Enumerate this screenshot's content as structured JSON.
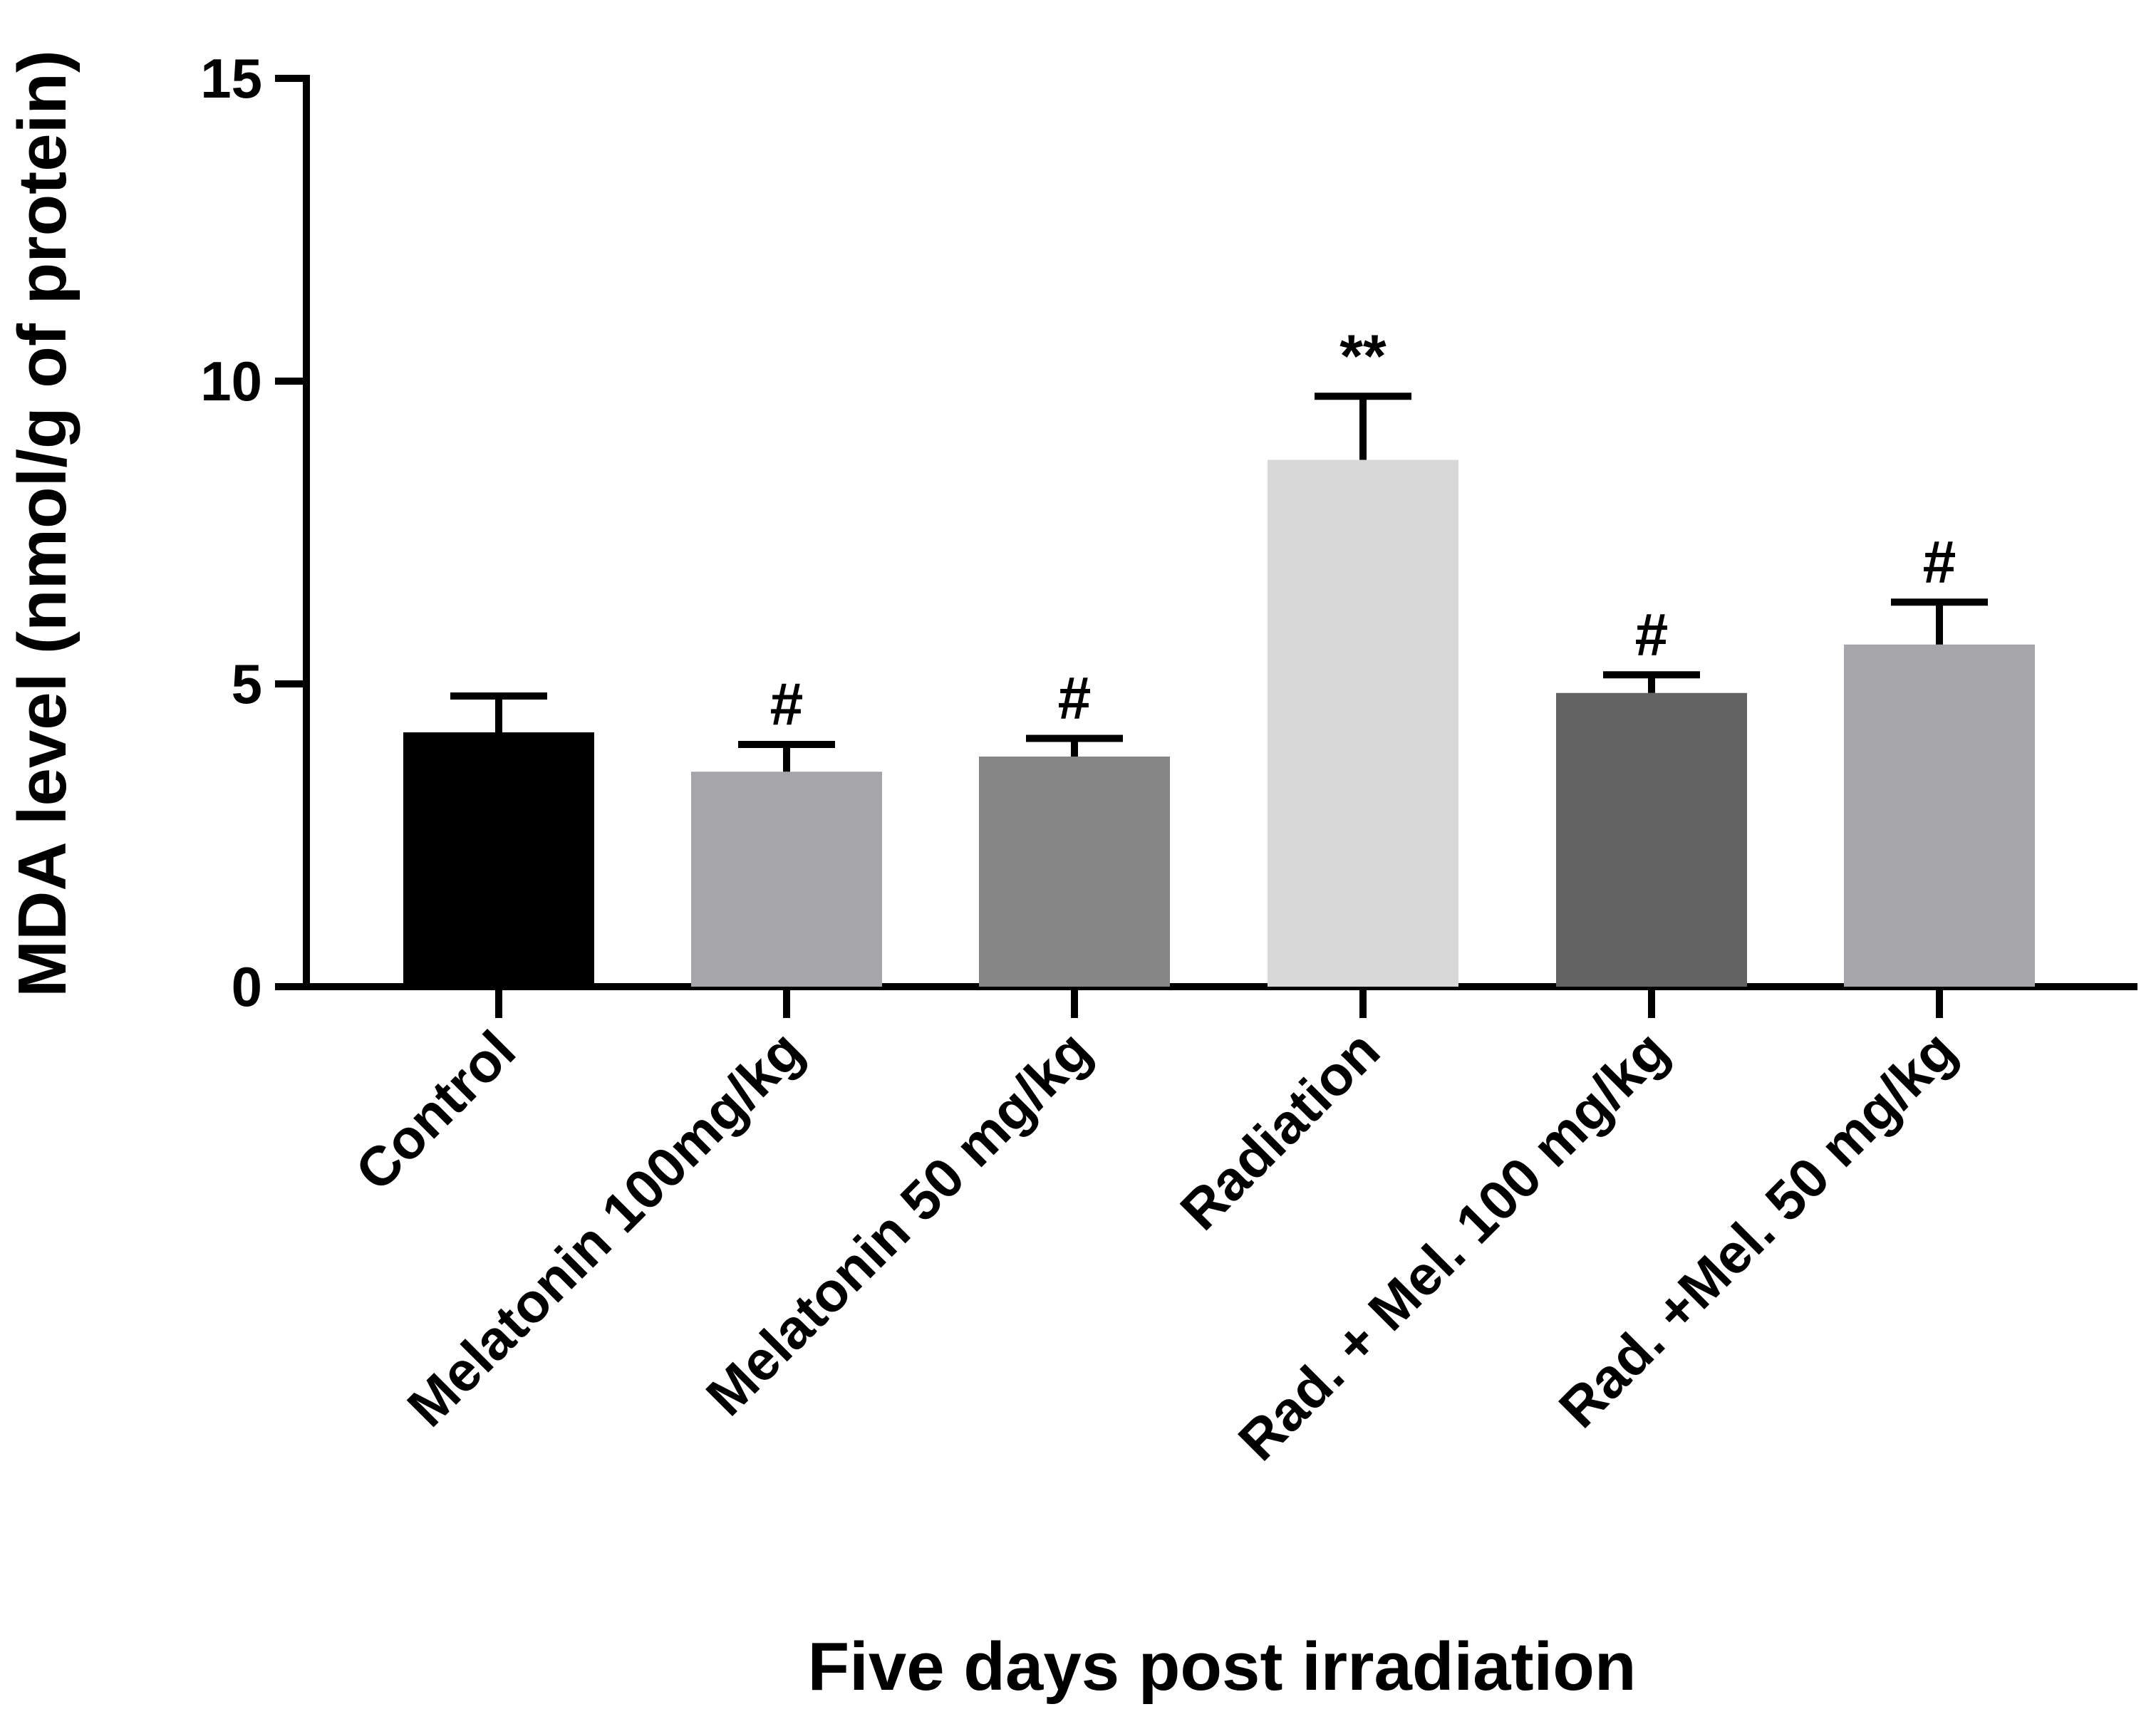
{
  "chart_data": {
    "type": "bar",
    "title": "",
    "xlabel": "Five days post irradiation",
    "ylabel": "MDA level (nmol/g of protein)",
    "ylim": [
      0,
      15
    ],
    "yticks": [
      0,
      5,
      10,
      15
    ],
    "ytick_labels": [
      "0",
      "5",
      "10",
      "15"
    ],
    "grid": false,
    "categories": [
      "Control",
      "Melatonin 100mg/kg",
      "Melatonin 50 mg/kg",
      "Radiation",
      "Rad. + Mel. 100 mg/kg",
      "Rad. +Mel. 50 mg/kg"
    ],
    "values": [
      4.2,
      3.55,
      3.8,
      8.7,
      4.85,
      5.65
    ],
    "errors": [
      0.6,
      0.45,
      0.3,
      1.05,
      0.3,
      0.7
    ],
    "annotations": [
      "",
      "#",
      "#",
      "**",
      "#",
      "#"
    ],
    "colors": [
      "#000000",
      "#a6a6aa",
      "#858585",
      "#d8d8d8",
      "#636363",
      "#a6a6aa"
    ]
  }
}
